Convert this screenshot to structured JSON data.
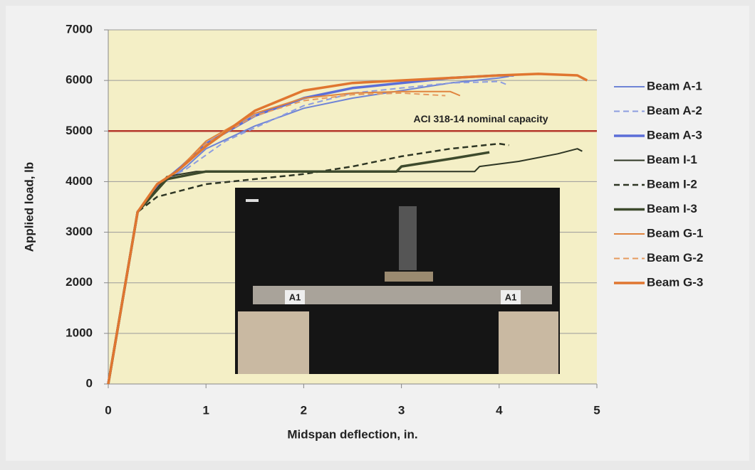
{
  "chart_data": {
    "type": "line",
    "xlabel": "Midspan deflection, in.",
    "ylabel": "Applied load, lb",
    "xlim": [
      0,
      5
    ],
    "xticks": [
      0,
      1,
      2,
      3,
      4,
      5
    ],
    "ylim": [
      0,
      7000
    ],
    "yticks": [
      0,
      1000,
      2000,
      3000,
      4000,
      5000,
      6000,
      7000
    ],
    "grid": true,
    "legend": "right",
    "reference_line": {
      "value": 5000,
      "label": "ACI 318-14 nominal capacity",
      "color": "#b5382c"
    },
    "photo_labels": [
      "A1",
      "A1"
    ],
    "series": [
      {
        "name": "Beam A-1",
        "color": "#6f84d6",
        "dash": false,
        "width": 2,
        "x": [
          0,
          0.15,
          0.3,
          0.5,
          0.7,
          0.8,
          1.0,
          1.5,
          2,
          2.5,
          3,
          3.5,
          4,
          4.1
        ],
        "values": [
          0,
          1700,
          3400,
          3900,
          4150,
          4300,
          4650,
          5100,
          5450,
          5650,
          5800,
          5950,
          6050,
          6080
        ]
      },
      {
        "name": "Beam A-2",
        "color": "#8d9de0",
        "dash": true,
        "width": 2,
        "x": [
          0,
          0.15,
          0.3,
          0.5,
          0.7,
          0.8,
          1.2,
          2,
          2.5,
          3,
          3.5,
          4,
          4.1
        ],
        "values": [
          0,
          1700,
          3400,
          3900,
          4150,
          4250,
          4800,
          5500,
          5750,
          5850,
          5950,
          5980,
          5900
        ]
      },
      {
        "name": "Beam A-3",
        "color": "#5b6ed8",
        "dash": false,
        "width": 3.5,
        "x": [
          0,
          0.15,
          0.3,
          0.5,
          0.75,
          1,
          1.5,
          2,
          2.5,
          3,
          3.5,
          4,
          4.15
        ],
        "values": [
          0,
          1700,
          3400,
          3900,
          4300,
          4750,
          5300,
          5650,
          5850,
          5950,
          6050,
          6100,
          6100
        ]
      },
      {
        "name": "Beam I-1",
        "color": "#2e3624",
        "dash": false,
        "width": 2,
        "x": [
          0,
          0.15,
          0.3,
          0.6,
          0.9,
          2,
          3,
          3.75,
          3.8,
          4.2,
          4.6,
          4.8,
          4.85
        ],
        "values": [
          0,
          1700,
          3400,
          4100,
          4200,
          4200,
          4200,
          4200,
          4300,
          4400,
          4550,
          4650,
          4600
        ]
      },
      {
        "name": "Beam I-2",
        "color": "#2e3624",
        "dash": true,
        "width": 2.5,
        "x": [
          0,
          0.15,
          0.3,
          0.5,
          1,
          1.5,
          2,
          2.5,
          3,
          3.5,
          4,
          4.1
        ],
        "values": [
          0,
          1700,
          3400,
          3700,
          3950,
          4050,
          4150,
          4300,
          4500,
          4650,
          4750,
          4720
        ]
      },
      {
        "name": "Beam I-3",
        "color": "#3d4a2c",
        "dash": false,
        "width": 3.5,
        "x": [
          0,
          0.15,
          0.3,
          0.6,
          1,
          2,
          2.95,
          3,
          3.5,
          3.9
        ],
        "values": [
          0,
          1700,
          3400,
          4050,
          4200,
          4200,
          4200,
          4300,
          4450,
          4580
        ]
      },
      {
        "name": "Beam G-1",
        "color": "#e0843e",
        "dash": false,
        "width": 2,
        "x": [
          0,
          0.15,
          0.3,
          0.5,
          0.7,
          1,
          1.5,
          2,
          2.5,
          3,
          3.5,
          3.6
        ],
        "values": [
          0,
          1700,
          3400,
          3950,
          4200,
          4800,
          5350,
          5650,
          5750,
          5780,
          5780,
          5700
        ]
      },
      {
        "name": "Beam G-2",
        "color": "#e69a5e",
        "dash": true,
        "width": 2,
        "x": [
          0,
          0.15,
          0.3,
          0.5,
          0.7,
          1,
          1.5,
          2,
          2.5,
          3,
          3.45
        ],
        "values": [
          0,
          1700,
          3400,
          3950,
          4200,
          4750,
          5300,
          5600,
          5720,
          5750,
          5700
        ]
      },
      {
        "name": "Beam G-3",
        "color": "#e07630",
        "dash": false,
        "width": 3.5,
        "x": [
          0,
          0.15,
          0.3,
          0.5,
          0.7,
          1,
          1.5,
          2,
          2.5,
          3,
          3.5,
          4,
          4.4,
          4.8,
          4.9
        ],
        "values": [
          0,
          1700,
          3400,
          3950,
          4200,
          4700,
          5400,
          5800,
          5950,
          6000,
          6050,
          6100,
          6130,
          6100,
          6000
        ]
      }
    ]
  }
}
